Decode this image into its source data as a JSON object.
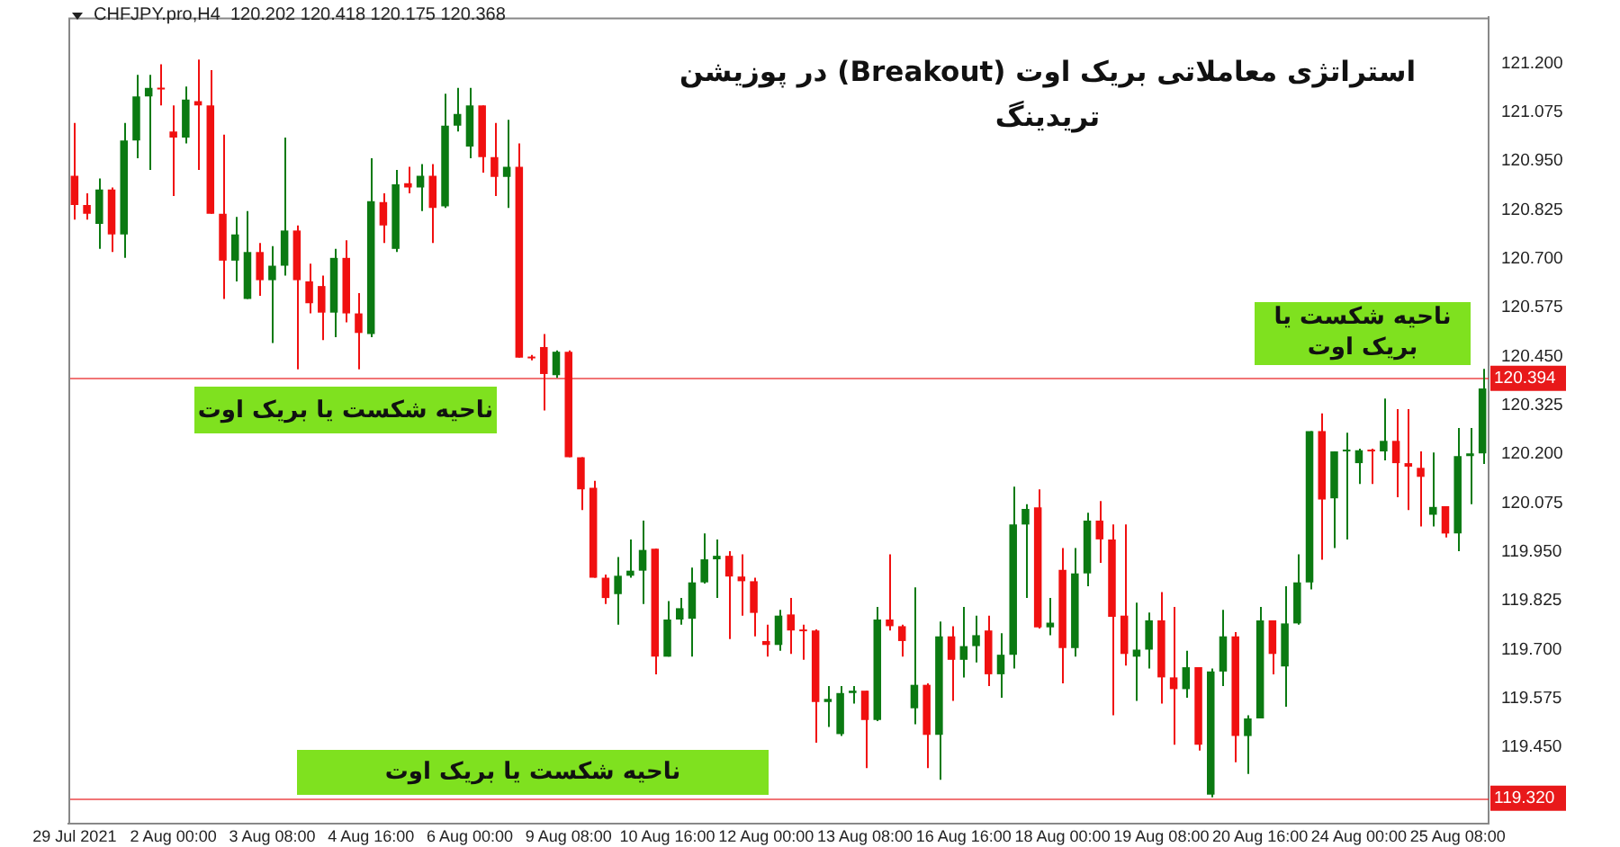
{
  "chart_data": {
    "type": "candlestick",
    "title": "استراتژی معاملاتی بریک اوت (Breakout) در پوزیشن تریدینگ",
    "categories": [
      "29 Jul 2021",
      null,
      null,
      null,
      null,
      null,
      null,
      null,
      "2 Aug 00:00",
      null,
      null,
      null,
      null,
      null,
      null,
      null,
      "3 Aug 08:00",
      null,
      null,
      null,
      null,
      null,
      null,
      null,
      "4 Aug 16:00",
      null,
      null,
      null,
      null,
      null,
      null,
      null,
      "6 Aug 00:00",
      null,
      null,
      null,
      null,
      null,
      null,
      null,
      "9 Aug 08:00",
      null,
      null,
      null,
      null,
      null,
      null,
      null,
      "10 Aug 16:00",
      null,
      null,
      null,
      null,
      null,
      null,
      null,
      "12 Aug 00:00",
      null,
      null,
      null,
      null,
      null,
      null,
      null,
      "13 Aug 08:00",
      null,
      null,
      null,
      null,
      null,
      null,
      null,
      "16 Aug 16:00",
      null,
      null,
      null,
      null,
      null,
      null,
      null,
      "18 Aug 00:00",
      null,
      null,
      null,
      null,
      null,
      null,
      null,
      "19 Aug 08:00",
      null,
      null,
      null,
      null,
      null,
      null,
      null,
      "20 Aug 16:00",
      null,
      null,
      null,
      null,
      null,
      null,
      null,
      "24 Aug 00:00",
      null,
      null,
      null,
      null,
      null,
      null,
      null,
      "25 Aug 08:00",
      null,
      null
    ],
    "ohlc": [
      [
        120.912,
        121.047,
        120.8,
        120.837
      ],
      [
        120.837,
        120.867,
        120.8,
        120.815
      ],
      [
        120.789,
        120.905,
        120.725,
        120.877
      ],
      [
        120.877,
        120.882,
        120.717,
        120.762
      ],
      [
        120.762,
        121.047,
        120.702,
        121.002
      ],
      [
        121.002,
        121.17,
        120.957,
        121.115
      ],
      [
        121.115,
        121.17,
        120.927,
        121.137
      ],
      [
        121.137,
        121.197,
        121.092,
        121.133
      ],
      [
        121.025,
        121.092,
        120.86,
        121.01
      ],
      [
        121.01,
        121.14,
        120.995,
        121.107
      ],
      [
        121.103,
        121.209,
        120.927,
        121.092
      ],
      [
        121.092,
        121.182,
        120.815,
        120.815
      ],
      [
        120.815,
        121.017,
        120.597,
        120.695
      ],
      [
        120.695,
        120.807,
        120.642,
        120.762
      ],
      [
        120.597,
        120.822,
        120.597,
        120.717
      ],
      [
        120.717,
        120.74,
        120.605,
        120.645
      ],
      [
        120.645,
        120.732,
        120.484,
        120.682
      ],
      [
        120.682,
        121.01,
        120.657,
        120.772
      ],
      [
        120.772,
        120.785,
        120.417,
        120.645
      ],
      [
        120.642,
        120.687,
        120.56,
        120.586
      ],
      [
        120.63,
        120.657,
        120.492,
        120.562
      ],
      [
        120.562,
        120.725,
        120.499,
        120.702
      ],
      [
        120.702,
        120.747,
        120.537,
        120.56
      ],
      [
        120.56,
        120.612,
        120.417,
        120.51
      ],
      [
        120.507,
        120.957,
        120.499,
        120.847
      ],
      [
        120.845,
        120.867,
        120.74,
        120.785
      ],
      [
        120.725,
        120.927,
        120.717,
        120.89
      ],
      [
        120.893,
        120.935,
        120.867,
        120.882
      ],
      [
        120.882,
        120.942,
        120.822,
        120.912
      ],
      [
        120.912,
        120.942,
        120.74,
        120.83
      ],
      [
        120.834,
        121.122,
        120.83,
        121.04
      ],
      [
        121.04,
        121.137,
        121.025,
        121.07
      ],
      [
        120.987,
        121.137,
        120.957,
        121.092
      ],
      [
        121.092,
        121.092,
        120.92,
        120.96
      ],
      [
        120.96,
        121.047,
        120.86,
        120.909
      ],
      [
        120.909,
        121.055,
        120.83,
        120.935
      ],
      [
        120.935,
        120.995,
        120.447,
        120.447
      ],
      [
        120.447,
        120.454,
        120.44,
        120.445
      ],
      [
        120.474,
        120.507,
        120.312,
        120.405
      ],
      [
        120.402,
        120.465,
        120.395,
        120.462
      ],
      [
        120.462,
        120.465,
        120.192,
        120.192
      ],
      [
        120.192,
        120.192,
        120.057,
        120.11
      ],
      [
        120.114,
        120.132,
        119.884,
        119.884
      ],
      [
        119.884,
        119.892,
        119.817,
        119.832
      ],
      [
        119.842,
        119.937,
        119.764,
        119.889
      ],
      [
        119.889,
        119.982,
        119.884,
        119.902
      ],
      [
        119.902,
        120.03,
        119.817,
        119.955
      ],
      [
        119.958,
        119.958,
        119.637,
        119.682
      ],
      [
        119.682,
        119.824,
        119.682,
        119.777
      ],
      [
        119.777,
        119.832,
        119.764,
        119.806
      ],
      [
        119.779,
        119.91,
        119.682,
        119.872
      ],
      [
        119.872,
        119.997,
        119.869,
        119.931
      ],
      [
        119.931,
        119.982,
        119.832,
        119.94
      ],
      [
        119.94,
        119.952,
        119.727,
        119.887
      ],
      [
        119.887,
        119.944,
        119.787,
        119.875
      ],
      [
        119.875,
        119.884,
        119.734,
        119.794
      ],
      [
        119.722,
        119.764,
        119.682,
        119.712
      ],
      [
        119.712,
        119.802,
        119.697,
        119.787
      ],
      [
        119.79,
        119.832,
        119.689,
        119.749
      ],
      [
        119.749,
        119.764,
        119.674,
        119.747
      ],
      [
        119.749,
        119.752,
        119.462,
        119.566
      ],
      [
        119.566,
        119.607,
        119.502,
        119.574
      ],
      [
        119.484,
        119.607,
        119.479,
        119.589
      ],
      [
        119.589,
        119.607,
        119.562,
        119.595
      ],
      [
        119.595,
        119.595,
        119.397,
        119.52
      ],
      [
        119.52,
        119.809,
        119.517,
        119.777
      ],
      [
        119.777,
        119.944,
        119.749,
        119.76
      ],
      [
        119.76,
        119.764,
        119.682,
        119.722
      ],
      [
        119.55,
        119.859,
        119.509,
        119.61
      ],
      [
        119.61,
        119.614,
        119.397,
        119.482
      ],
      [
        119.482,
        119.772,
        119.367,
        119.734
      ],
      [
        119.734,
        119.76,
        119.569,
        119.674
      ],
      [
        119.674,
        119.809,
        119.629,
        119.709
      ],
      [
        119.709,
        119.787,
        119.667,
        119.737
      ],
      [
        119.749,
        119.787,
        119.607,
        119.637
      ],
      [
        119.637,
        119.742,
        119.577,
        119.687
      ],
      [
        119.687,
        120.117,
        119.652,
        120.02
      ],
      [
        120.02,
        120.072,
        119.832,
        120.06
      ],
      [
        120.064,
        120.11,
        119.754,
        119.757
      ],
      [
        119.757,
        119.832,
        119.737,
        119.769
      ],
      [
        119.904,
        119.96,
        119.614,
        119.704
      ],
      [
        119.704,
        119.96,
        119.682,
        119.895
      ],
      [
        119.895,
        120.05,
        119.862,
        120.03
      ],
      [
        120.03,
        120.08,
        119.922,
        119.982
      ],
      [
        119.982,
        120.02,
        119.532,
        119.784
      ],
      [
        119.787,
        120.02,
        119.659,
        119.689
      ],
      [
        119.682,
        119.82,
        119.569,
        119.7
      ],
      [
        119.7,
        119.795,
        119.652,
        119.775
      ],
      [
        119.775,
        119.847,
        119.562,
        119.629
      ],
      [
        119.629,
        119.809,
        119.457,
        119.599
      ],
      [
        119.599,
        119.697,
        119.577,
        119.655
      ],
      [
        119.655,
        119.655,
        119.442,
        119.457
      ],
      [
        119.329,
        119.652,
        119.322,
        119.644
      ],
      [
        119.644,
        119.802,
        119.607,
        119.734
      ],
      [
        119.734,
        119.745,
        119.412,
        119.479
      ],
      [
        119.479,
        119.532,
        119.382,
        119.524
      ],
      [
        119.524,
        119.809,
        119.524,
        119.775
      ],
      [
        119.775,
        119.775,
        119.637,
        119.689
      ],
      [
        119.657,
        119.862,
        119.554,
        119.767
      ],
      [
        119.767,
        119.944,
        119.764,
        119.872
      ],
      [
        119.872,
        120.259,
        119.854,
        120.259
      ],
      [
        120.259,
        120.304,
        119.93,
        120.084
      ],
      [
        120.087,
        120.207,
        119.96,
        120.207
      ],
      [
        120.207,
        120.255,
        119.982,
        120.21
      ],
      [
        120.177,
        120.214,
        120.124,
        120.21
      ],
      [
        120.21,
        120.214,
        120.124,
        120.207
      ],
      [
        120.207,
        120.342,
        120.184,
        120.234
      ],
      [
        120.234,
        120.315,
        120.09,
        120.177
      ],
      [
        120.177,
        120.315,
        120.057,
        120.168
      ],
      [
        120.165,
        120.207,
        120.015,
        120.142
      ],
      [
        120.045,
        120.204,
        120.015,
        120.065
      ],
      [
        120.067,
        120.067,
        119.987,
        119.997
      ],
      [
        119.997,
        120.267,
        119.952,
        120.195
      ],
      [
        120.195,
        120.267,
        120.072,
        120.202
      ],
      [
        120.202,
        120.418,
        120.175,
        120.368
      ]
    ],
    "colors": [
      "#f01010",
      "#f01010",
      "#0b7a12",
      "#f01010",
      "#0b7a12",
      "#0b7a12",
      "#0b7a12",
      "#f01010",
      "#f01010",
      "#0b7a12",
      "#f01010",
      "#f01010",
      "#f01010",
      "#0b7a12",
      "#0b7a12",
      "#f01010",
      "#0b7a12",
      "#0b7a12",
      "#f01010",
      "#f01010",
      "#f01010",
      "#0b7a12",
      "#f01010",
      "#f01010",
      "#0b7a12",
      "#f01010",
      "#0b7a12",
      "#f01010",
      "#0b7a12",
      "#f01010",
      "#0b7a12",
      "#0b7a12",
      "#0b7a12",
      "#f01010",
      "#f01010",
      "#0b7a12",
      "#f01010",
      "#f01010",
      "#f01010",
      "#0b7a12",
      "#f01010",
      "#f01010",
      "#f01010",
      "#f01010",
      "#0b7a12",
      "#0b7a12",
      "#0b7a12",
      "#f01010",
      "#0b7a12",
      "#0b7a12",
      "#0b7a12",
      "#0b7a12",
      "#0b7a12",
      "#f01010",
      "#f01010",
      "#f01010",
      "#f01010",
      "#0b7a12",
      "#f01010",
      "#f01010",
      "#f01010",
      "#0b7a12",
      "#0b7a12",
      "#0b7a12",
      "#f01010",
      "#0b7a12",
      "#f01010",
      "#f01010",
      "#0b7a12",
      "#f01010",
      "#0b7a12",
      "#f01010",
      "#0b7a12",
      "#0b7a12",
      "#f01010",
      "#0b7a12",
      "#0b7a12",
      "#0b7a12",
      "#f01010",
      "#0b7a12",
      "#f01010",
      "#0b7a12",
      "#0b7a12",
      "#f01010",
      "#f01010",
      "#f01010",
      "#0b7a12",
      "#0b7a12",
      "#f01010",
      "#f01010",
      "#0b7a12",
      "#f01010",
      "#0b7a12",
      "#0b7a12",
      "#f01010",
      "#0b7a12",
      "#0b7a12",
      "#f01010",
      "#0b7a12",
      "#0b7a12",
      "#0b7a12",
      "#f01010",
      "#0b7a12",
      "#0b7a12",
      "#0b7a12",
      "#f01010",
      "#0b7a12",
      "#f01010",
      "#f01010",
      "#f01010",
      "#0b7a12",
      "#f01010",
      "#0b7a12",
      "#0b7a12",
      "#0b7a12"
    ],
    "ylim": [
      119.255,
      121.317
    ],
    "yticks": [
      {
        "value": 121.2,
        "label": "121.200"
      },
      {
        "value": 121.075,
        "label": "121.075"
      },
      {
        "value": 120.95,
        "label": "120.950"
      },
      {
        "value": 120.825,
        "label": "120.825"
      },
      {
        "value": 120.7,
        "label": "120.700"
      },
      {
        "value": 120.575,
        "label": "120.575"
      },
      {
        "value": 120.45,
        "label": "120.450"
      },
      {
        "value": 120.325,
        "label": "120.325"
      },
      {
        "value": 120.2,
        "label": "120.200"
      },
      {
        "value": 120.075,
        "label": "120.075"
      },
      {
        "value": 119.95,
        "label": "119.950"
      },
      {
        "value": 119.825,
        "label": "119.825"
      },
      {
        "value": 119.7,
        "label": "119.700"
      },
      {
        "value": 119.575,
        "label": "119.575"
      },
      {
        "value": 119.45,
        "label": "119.450"
      }
    ],
    "ref_lines": [
      {
        "axis": "y",
        "value": 120.394,
        "label": "120.394",
        "color": "#e8191a"
      },
      {
        "axis": "y",
        "value": 119.32,
        "label": "119.320",
        "color": "#e8191a"
      }
    ],
    "annotations": [
      "CHFJPY.pro,H4  120.202 120.418 120.175 120.368",
      {
        "text": "ناحیه شکست یا بریک اوت",
        "y": 120.394
      },
      {
        "text": "ناحیه شکست یا بریک اوت",
        "y": 119.32
      },
      {
        "text": "ناحیه شکست یا بریک اوت",
        "y": 120.394
      }
    ]
  }
}
